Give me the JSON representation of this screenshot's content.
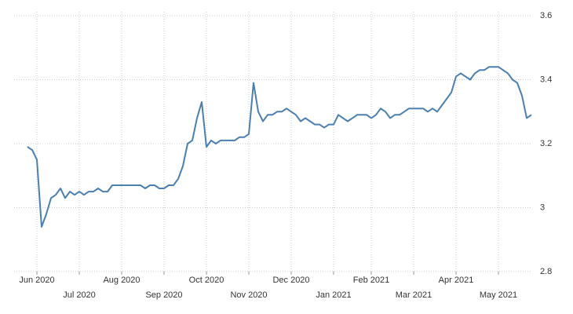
{
  "chart_data": {
    "type": "line",
    "categories": [
      null,
      null,
      "Jun 2020",
      null,
      null,
      null,
      null,
      null,
      null,
      null,
      null,
      "Jul 2020",
      null,
      null,
      null,
      null,
      null,
      null,
      null,
      null,
      "Aug 2020",
      null,
      null,
      null,
      null,
      null,
      null,
      null,
      null,
      "Sep 2020",
      null,
      null,
      null,
      null,
      null,
      null,
      null,
      null,
      "Oct 2020",
      null,
      null,
      null,
      null,
      null,
      null,
      null,
      null,
      "Nov 2020",
      null,
      null,
      null,
      null,
      null,
      null,
      null,
      null,
      "Dec 2020",
      null,
      null,
      null,
      null,
      null,
      null,
      null,
      null,
      "Jan 2021",
      null,
      null,
      null,
      null,
      null,
      null,
      null,
      "Feb 2021",
      null,
      null,
      null,
      null,
      null,
      null,
      null,
      null,
      "Mar 2021",
      null,
      null,
      null,
      null,
      null,
      null,
      null,
      null,
      "Apr 2021",
      null,
      null,
      null,
      null,
      null,
      null,
      null,
      null,
      "May 2021",
      null,
      null,
      null,
      null,
      null,
      null,
      null
    ],
    "values": [
      3.19,
      3.18,
      3.15,
      2.94,
      2.98,
      3.03,
      3.04,
      3.06,
      3.03,
      3.05,
      3.04,
      3.05,
      3.04,
      3.05,
      3.05,
      3.06,
      3.05,
      3.05,
      3.07,
      3.07,
      3.07,
      3.07,
      3.07,
      3.07,
      3.07,
      3.06,
      3.07,
      3.07,
      3.06,
      3.06,
      3.07,
      3.07,
      3.09,
      3.13,
      3.2,
      3.21,
      3.28,
      3.33,
      3.19,
      3.21,
      3.2,
      3.21,
      3.21,
      3.21,
      3.21,
      3.22,
      3.22,
      3.23,
      3.39,
      3.3,
      3.27,
      3.29,
      3.29,
      3.3,
      3.3,
      3.31,
      3.3,
      3.29,
      3.27,
      3.28,
      3.27,
      3.26,
      3.26,
      3.25,
      3.26,
      3.26,
      3.29,
      3.28,
      3.27,
      3.28,
      3.29,
      3.29,
      3.29,
      3.28,
      3.29,
      3.31,
      3.3,
      3.28,
      3.29,
      3.29,
      3.3,
      3.31,
      3.31,
      3.31,
      3.31,
      3.3,
      3.31,
      3.3,
      3.32,
      3.34,
      3.36,
      3.41,
      3.42,
      3.41,
      3.4,
      3.42,
      3.43,
      3.43,
      3.44,
      3.44,
      3.44,
      3.43,
      3.42,
      3.4,
      3.39,
      3.35,
      3.28,
      3.29
    ],
    "color": "#4a7fb0",
    "ylim": [
      2.8,
      3.6
    ],
    "yticks": [
      2.8,
      3,
      3.2,
      3.4,
      3.6
    ],
    "grid": true
  }
}
